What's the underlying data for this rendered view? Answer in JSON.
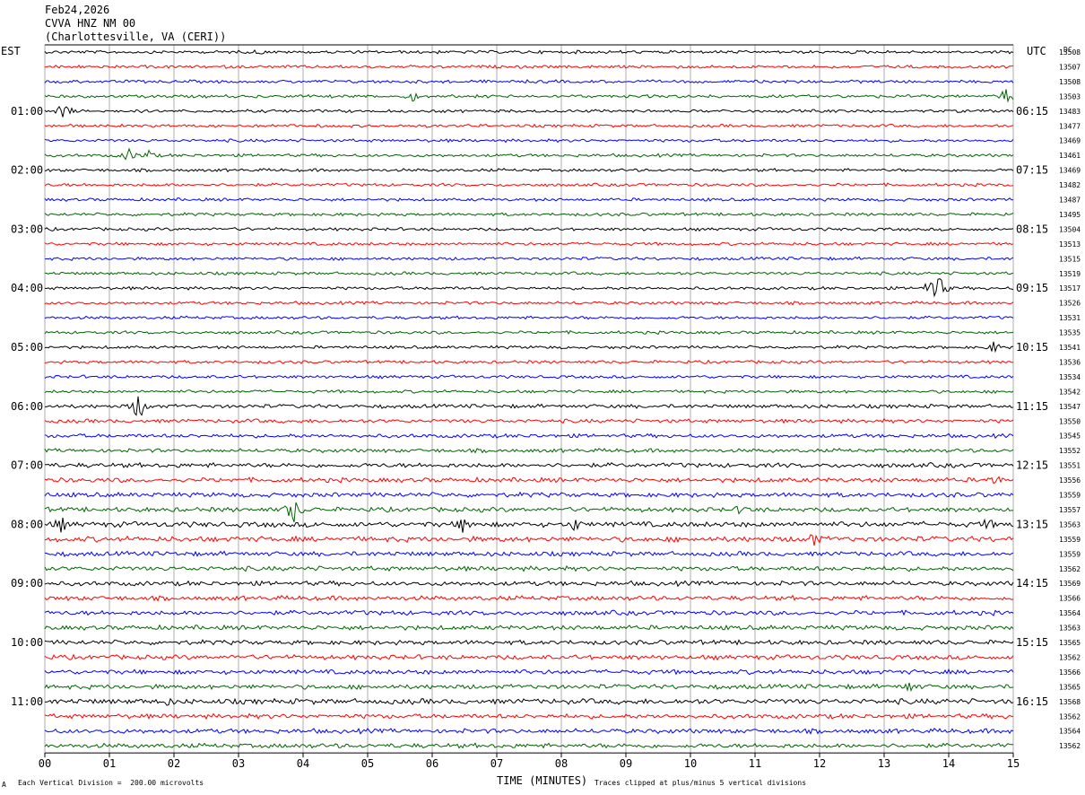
{
  "header": {
    "date": "Feb24,2026",
    "station": "CVVA HNZ NM 00",
    "location": "(Charlottesville, VA (CERI))"
  },
  "left_axis_title": "EST",
  "right_axis_title": "UTC",
  "right_value_title": "DC",
  "footer": {
    "xlabel": "TIME (MINUTES)",
    "scale_note": "Each Vertical Division =  200.00 microvolts",
    "clip_note": "Traces clipped at plus/minus 5 vertical divisions",
    "corner_mark": "A"
  },
  "colors": {
    "trace_cycle": [
      "#000000",
      "#ff0000",
      "#0000ff",
      "#006400"
    ],
    "grid": "#888888"
  },
  "chart_data": {
    "type": "line",
    "title": "",
    "xlabel": "TIME (MINUTES)",
    "xlim": [
      0,
      15
    ],
    "x_ticks": [
      "00",
      "01",
      "02",
      "03",
      "04",
      "05",
      "06",
      "07",
      "08",
      "09",
      "10",
      "11",
      "12",
      "13",
      "14",
      "15"
    ],
    "rows_per_hour": 4,
    "est_hour_labels": [
      "01:00",
      "02:00",
      "03:00",
      "04:00",
      "05:00",
      "06:00",
      "07:00",
      "08:00",
      "09:00",
      "10:00",
      "11:00"
    ],
    "utc_hour_labels": [
      "06:15",
      "07:15",
      "08:15",
      "09:15",
      "10:15",
      "11:15",
      "12:15",
      "13:15",
      "14:15",
      "15:15",
      "16:15"
    ],
    "first_labeled_row": 4,
    "trace_dc_values": [
      13508,
      13507,
      13508,
      13503,
      13483,
      13477,
      13469,
      13461,
      13469,
      13482,
      13487,
      13495,
      13504,
      13513,
      13515,
      13519,
      13517,
      13526,
      13531,
      13535,
      13541,
      13536,
      13534,
      13542,
      13547,
      13550,
      13545,
      13552,
      13551,
      13556,
      13559,
      13557,
      13563,
      13559,
      13559,
      13562,
      13569,
      13566,
      13564,
      13563,
      13565,
      13562,
      13566,
      13565,
      13568,
      13562,
      13564,
      13562
    ],
    "noise_amplitude": [
      2,
      2,
      2,
      2,
      2,
      2,
      2,
      2,
      2,
      2,
      2,
      2,
      2,
      2,
      2,
      2,
      2,
      2,
      2,
      2,
      2,
      2,
      2,
      2,
      2.5,
      2.5,
      2.5,
      2.5,
      3,
      3,
      3,
      3,
      3.5,
      3.5,
      3,
      3,
      3,
      3,
      3,
      3,
      3,
      3,
      3,
      3,
      3.5,
      3,
      3,
      3
    ],
    "events": [
      {
        "row": 0,
        "minute": 3.3,
        "amplitude": 4
      },
      {
        "row": 3,
        "minute": 5.7,
        "amplitude": 6
      },
      {
        "row": 3,
        "minute": 14.9,
        "amplitude": 10
      },
      {
        "row": 4,
        "minute": 0.3,
        "amplitude": 10
      },
      {
        "row": 7,
        "minute": 1.3,
        "amplitude": 8
      },
      {
        "row": 7,
        "minute": 1.6,
        "amplitude": 7
      },
      {
        "row": 16,
        "minute": 13.8,
        "amplitude": 20
      },
      {
        "row": 20,
        "minute": 14.7,
        "amplitude": 7
      },
      {
        "row": 24,
        "minute": 1.45,
        "amplitude": 16
      },
      {
        "row": 29,
        "minute": 14.7,
        "amplitude": 8
      },
      {
        "row": 31,
        "minute": 3.85,
        "amplitude": 16
      },
      {
        "row": 31,
        "minute": 10.8,
        "amplitude": 8
      },
      {
        "row": 32,
        "minute": 0.25,
        "amplitude": 10
      },
      {
        "row": 32,
        "minute": 6.5,
        "amplitude": 12
      },
      {
        "row": 32,
        "minute": 8.2,
        "amplitude": 9
      },
      {
        "row": 32,
        "minute": 14.6,
        "amplitude": 9
      },
      {
        "row": 33,
        "minute": 11.9,
        "amplitude": 10
      },
      {
        "row": 43,
        "minute": 13.4,
        "amplitude": 8
      },
      {
        "row": 44,
        "minute": 1.9,
        "amplitude": 6
      }
    ]
  }
}
